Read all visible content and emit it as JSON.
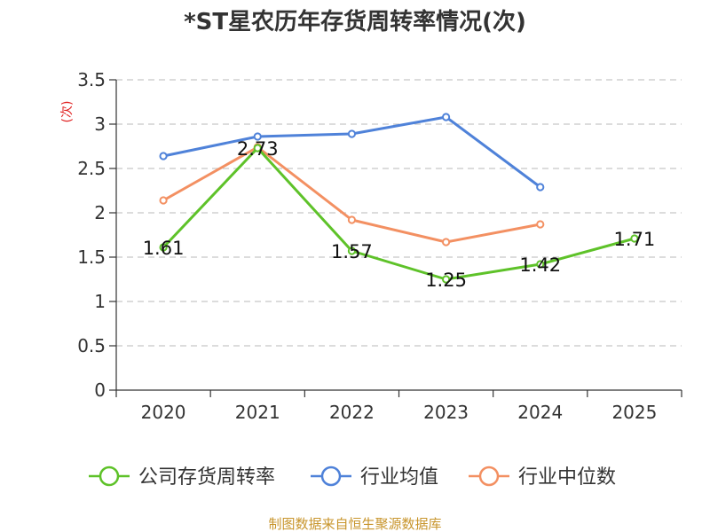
{
  "chart_data": {
    "type": "line",
    "title": "*ST星农历年存货周转率情况(次)",
    "ylabel": "(次)",
    "xlabel": "",
    "ylim": [
      0,
      3.5
    ],
    "yticks": [
      "0",
      "0.5",
      "1",
      "1.5",
      "2",
      "2.5",
      "3",
      "3.5"
    ],
    "categories": [
      "2020",
      "2021",
      "2022",
      "2023",
      "2024",
      "2025"
    ],
    "grid": true,
    "legend_position": "bottom",
    "series": [
      {
        "name": "公司存货周转率",
        "color": "#5ec229",
        "values": [
          1.61,
          2.73,
          1.57,
          1.25,
          1.42,
          1.71
        ],
        "labels": [
          "1.61",
          "2.73",
          "1.57",
          "1.25",
          "1.42",
          "1.71"
        ]
      },
      {
        "name": "行业均值",
        "color": "#4f82d9",
        "values": [
          2.64,
          2.86,
          2.89,
          3.08,
          2.29,
          null
        ]
      },
      {
        "name": "行业中位数",
        "color": "#f39062",
        "values": [
          2.14,
          2.74,
          1.92,
          1.67,
          1.87,
          null
        ]
      }
    ]
  },
  "source_text": "制图数据来自恒生聚源数据库"
}
